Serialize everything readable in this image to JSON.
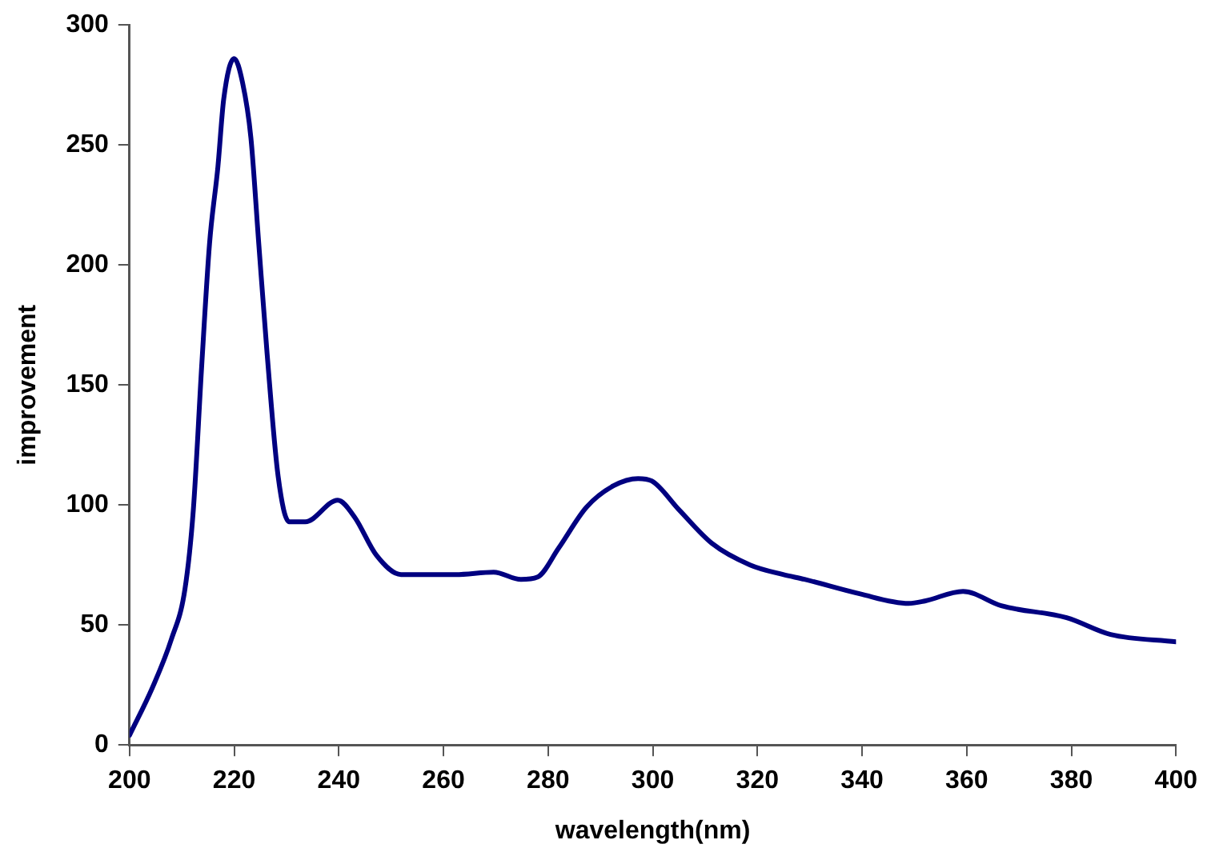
{
  "chart_data": {
    "type": "line",
    "xlabel": "wavelength(nm)",
    "ylabel": "improvement",
    "xlim": [
      200,
      400
    ],
    "ylim": [
      0,
      300
    ],
    "xticks": [
      200,
      220,
      240,
      260,
      280,
      300,
      320,
      340,
      360,
      380,
      400
    ],
    "yticks": [
      0,
      50,
      100,
      150,
      200,
      250,
      300
    ],
    "grid": false,
    "legend": false,
    "marker": "none",
    "line_style": "solid",
    "series": [
      {
        "color": "#000080",
        "x": [
          200,
          204.4,
          208,
          210.6,
          212.2,
          213.8,
          215.3,
          216.9,
          218,
          220,
          221.6,
          223.2,
          224.7,
          226.3,
          228.4,
          230.5,
          233.6,
          239.8,
          243,
          247.2,
          251.9,
          262.3,
          269.6,
          274.8,
          278,
          282,
          287.3,
          292.5,
          297.2,
          299.8,
          305,
          311.3,
          318.6,
          324.9,
          329,
          339.5,
          348.9,
          352,
          359.3,
          366.6,
          379.1,
          387.5,
          400
        ],
        "values": [
          4,
          24,
          44,
          65,
          98,
          158,
          209,
          241,
          269,
          286,
          276,
          253,
          209,
          163,
          112,
          93,
          93,
          102,
          95,
          79,
          71,
          71,
          72,
          69,
          70,
          82,
          99,
          108,
          111,
          110,
          98,
          84,
          75,
          71,
          69,
          63,
          59,
          60,
          64,
          58,
          53,
          46,
          43
        ]
      }
    ]
  }
}
